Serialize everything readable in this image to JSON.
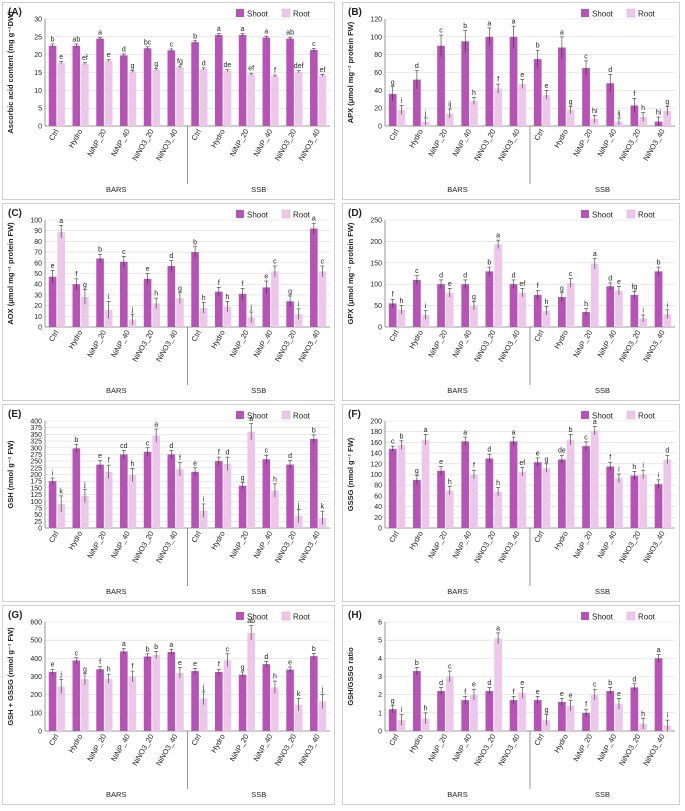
{
  "legend": {
    "shoot": "Shoot",
    "root": "Root"
  },
  "colors": {
    "shoot": "#b554b4",
    "root": "#edc7ea",
    "axis": "#7a7a7a",
    "grid": "#d9d9d9",
    "text": "#222222"
  },
  "categories": [
    "Ctrl",
    "Hydro",
    "NiNP_20",
    "NiNP_40",
    "NiNO3_20",
    "NiNO3_40"
  ],
  "groups": [
    "BARS",
    "SSB"
  ],
  "chart_data": [
    {
      "type": "bar",
      "panel": "(A)",
      "ylabel": "Ascorbic acid content (mg g⁻¹DW)",
      "ylim": [
        0,
        30
      ],
      "yticks": [
        0,
        5,
        10,
        15,
        20,
        25,
        30
      ],
      "shoot": [
        22.5,
        22.5,
        24.5,
        19.8,
        21.8,
        21.2,
        23.5,
        25.5,
        25.5,
        24.8,
        24.5,
        21.3
      ],
      "root": [
        17.8,
        17.5,
        18.3,
        15.3,
        15.8,
        16.5,
        16.0,
        15.5,
        14.5,
        14.0,
        15.2,
        14.2
      ],
      "shoot_err": [
        0.5,
        0.5,
        0.4,
        0.4,
        0.4,
        0.4,
        0.4,
        0.4,
        0.4,
        0.4,
        0.4,
        0.4
      ],
      "root_err": [
        0.3,
        0.3,
        0.3,
        0.3,
        0.3,
        0.3,
        0.3,
        0.3,
        0.3,
        0.3,
        0.3,
        0.3
      ],
      "shoot_letters": [
        "b",
        "ab",
        "a",
        "d",
        "bc",
        "c",
        "b",
        "a",
        "a",
        "a",
        "ab",
        "c"
      ],
      "root_letters": [
        "e",
        "ef",
        "e",
        "g",
        "g",
        "fg",
        "d",
        "de",
        "ef",
        "f",
        "def",
        "ef"
      ]
    },
    {
      "type": "bar",
      "panel": "(B)",
      "ylabel": "APX (μmol mg⁻¹ protein FW)",
      "ylim": [
        0,
        120
      ],
      "yticks": [
        0,
        20,
        40,
        60,
        80,
        100,
        120
      ],
      "shoot": [
        36,
        52,
        90,
        95,
        100,
        100,
        75,
        88,
        65,
        48,
        23,
        5
      ],
      "root": [
        18,
        5,
        14,
        28,
        42,
        47,
        35,
        18,
        8,
        5,
        10,
        17
      ],
      "shoot_err": [
        8,
        10,
        12,
        12,
        10,
        12,
        10,
        12,
        8,
        10,
        8,
        5
      ],
      "root_err": [
        5,
        4,
        5,
        4,
        5,
        5,
        5,
        4,
        4,
        4,
        5,
        5
      ],
      "shoot_letters": [
        "g",
        "d",
        "c",
        "b",
        "a",
        "a",
        "b",
        "a",
        "c",
        "d",
        "f",
        "hi"
      ],
      "root_letters": [
        "i",
        "j",
        "ij",
        "h",
        "f",
        "e",
        "e",
        "g",
        "hi",
        "ij",
        "h",
        "g"
      ]
    },
    {
      "type": "bar",
      "panel": "(C)",
      "ylabel": "AOX (μmol mg⁻¹ protein FW)",
      "ylim": [
        0,
        100
      ],
      "yticks": [
        0,
        10,
        20,
        30,
        40,
        50,
        60,
        70,
        80,
        90,
        100
      ],
      "shoot": [
        47,
        40,
        64,
        61,
        45,
        57,
        70,
        33,
        31,
        37,
        24,
        92
      ],
      "root": [
        89,
        28,
        16,
        7,
        22,
        27,
        18,
        19,
        9,
        52,
        12,
        52
      ],
      "shoot_err": [
        6,
        5,
        4,
        5,
        5,
        5,
        5,
        4,
        5,
        6,
        5,
        5
      ],
      "root_err": [
        6,
        7,
        8,
        5,
        5,
        5,
        5,
        5,
        5,
        5,
        5,
        5
      ],
      "shoot_letters": [
        "e",
        "f",
        "b",
        "c",
        "e",
        "d",
        "b",
        "f",
        "f",
        "e",
        "g",
        "a"
      ],
      "root_letters": [
        "a",
        "g",
        "i",
        "j",
        "h",
        "g",
        "h",
        "h",
        "j",
        "c",
        "i",
        "c"
      ]
    },
    {
      "type": "bar",
      "panel": "(D)",
      "ylabel": "GPX (μmol mg⁻¹ protein FW)",
      "ylim": [
        0,
        250
      ],
      "yticks": [
        0,
        50,
        100,
        150,
        200,
        250
      ],
      "shoot": [
        55,
        110,
        100,
        100,
        130,
        100,
        75,
        70,
        35,
        95,
        75,
        130
      ],
      "root": [
        40,
        28,
        80,
        50,
        193,
        80,
        38,
        103,
        148,
        85,
        20,
        30
      ],
      "shoot_err": [
        10,
        10,
        10,
        10,
        10,
        10,
        10,
        10,
        8,
        8,
        8,
        10
      ],
      "root_err": [
        10,
        10,
        10,
        10,
        10,
        10,
        10,
        10,
        12,
        10,
        8,
        10
      ],
      "shoot_letters": [
        "f",
        "c",
        "d",
        "d",
        "b",
        "d",
        "f",
        "g",
        "h",
        "d",
        "fg",
        "b"
      ],
      "root_letters": [
        "h",
        "i",
        "e",
        "g",
        "a",
        "ef",
        "h",
        "c",
        "a",
        "e",
        "i",
        "i"
      ]
    },
    {
      "type": "bar",
      "panel": "(E)",
      "ylabel": "GSH (nmol g⁻¹ FW)",
      "ylim": [
        0,
        400
      ],
      "yticks": [
        0,
        25,
        50,
        75,
        100,
        125,
        150,
        175,
        200,
        225,
        250,
        275,
        300,
        325,
        350,
        375,
        400
      ],
      "shoot": [
        175,
        298,
        237,
        275,
        285,
        275,
        210,
        250,
        158,
        257,
        237,
        333
      ],
      "root": [
        90,
        120,
        210,
        198,
        345,
        220,
        65,
        240,
        360,
        140,
        45,
        38
      ],
      "shoot_err": [
        12,
        15,
        15,
        15,
        15,
        15,
        15,
        15,
        12,
        15,
        15,
        15
      ],
      "root_err": [
        30,
        25,
        25,
        25,
        25,
        25,
        25,
        25,
        30,
        25,
        25,
        25
      ],
      "shoot_letters": [
        "i",
        "b",
        "e",
        "cd",
        "c",
        "d",
        "e",
        "f",
        "g",
        "c",
        "d",
        "b"
      ],
      "root_letters": [
        "k",
        "j",
        "f",
        "h",
        "a",
        "f",
        "i",
        "d",
        "a",
        "h",
        "j",
        "k"
      ]
    },
    {
      "type": "bar",
      "panel": "(F)",
      "ylabel": "GSSG (nmol g⁻¹ FW)",
      "ylim": [
        0,
        200
      ],
      "yticks": [
        0,
        20,
        40,
        60,
        80,
        100,
        120,
        140,
        160,
        180,
        200
      ],
      "shoot": [
        148,
        90,
        107,
        162,
        130,
        162,
        123,
        128,
        153,
        115,
        98,
        82
      ],
      "root": [
        155,
        165,
        70,
        100,
        68,
        105,
        112,
        165,
        182,
        93,
        100,
        128
      ],
      "shoot_err": [
        5,
        8,
        8,
        8,
        8,
        8,
        8,
        8,
        8,
        8,
        8,
        8
      ],
      "root_err": [
        8,
        10,
        8,
        8,
        8,
        8,
        8,
        10,
        8,
        8,
        8,
        8
      ],
      "shoot_letters": [
        "c",
        "g",
        "e",
        "a",
        "d",
        "a",
        "e",
        "de",
        "c",
        "f",
        "h",
        "i"
      ],
      "root_letters": [
        "b",
        "a",
        "h",
        "f",
        "h",
        "ef",
        "g",
        "b",
        "a",
        "i",
        "i",
        "d"
      ]
    },
    {
      "type": "bar",
      "panel": "(G)",
      "ylabel": "GSH + GSSG (nmol g⁻¹ FW)",
      "ylim": [
        0,
        600
      ],
      "yticks": [
        0,
        100,
        200,
        300,
        400,
        500,
        600
      ],
      "shoot": [
        325,
        388,
        340,
        438,
        410,
        435,
        330,
        325,
        310,
        368,
        338,
        412
      ],
      "root": [
        245,
        285,
        288,
        300,
        418,
        320,
        180,
        390,
        540,
        240,
        145,
        163
      ],
      "shoot_err": [
        15,
        15,
        15,
        15,
        15,
        15,
        15,
        15,
        15,
        15,
        15,
        15
      ],
      "root_err": [
        40,
        30,
        25,
        30,
        20,
        30,
        35,
        35,
        40,
        35,
        35,
        40
      ],
      "shoot_letters": [
        "e",
        "c",
        "f",
        "a",
        "b",
        "a",
        "e",
        "f",
        "g",
        "d",
        "e",
        "b"
      ],
      "root_letters": [
        "j",
        "g",
        "h",
        "f",
        "b",
        "e",
        "j",
        "c",
        "ab",
        "h",
        "k",
        "j"
      ]
    },
    {
      "type": "bar",
      "panel": "(H)",
      "ylabel": "GSH/GSSG ratio",
      "ylim": [
        0,
        6
      ],
      "yticks": [
        0,
        1,
        2,
        3,
        4,
        5,
        6
      ],
      "shoot": [
        1.2,
        3.3,
        2.2,
        1.7,
        2.2,
        1.7,
        1.7,
        1.6,
        1.0,
        2.2,
        2.4,
        4.0
      ],
      "root": [
        0.6,
        0.7,
        3.0,
        2.0,
        5.1,
        2.1,
        0.6,
        1.4,
        2.0,
        1.5,
        0.4,
        0.3
      ],
      "shoot_err": [
        0.2,
        0.2,
        0.2,
        0.2,
        0.2,
        0.2,
        0.2,
        0.2,
        0.2,
        0.2,
        0.2,
        0.2
      ],
      "root_err": [
        0.3,
        0.3,
        0.3,
        0.3,
        0.3,
        0.3,
        0.3,
        0.3,
        0.3,
        0.3,
        0.3,
        0.3
      ],
      "shoot_letters": [
        "g",
        "b",
        "d",
        "f",
        "d",
        "f",
        "e",
        "e",
        "f",
        "b",
        "d",
        "a"
      ],
      "root_letters": [
        "i",
        "h",
        "c",
        "e",
        "a",
        "e",
        "g",
        "e",
        "c",
        "e",
        "h",
        "i"
      ]
    }
  ]
}
